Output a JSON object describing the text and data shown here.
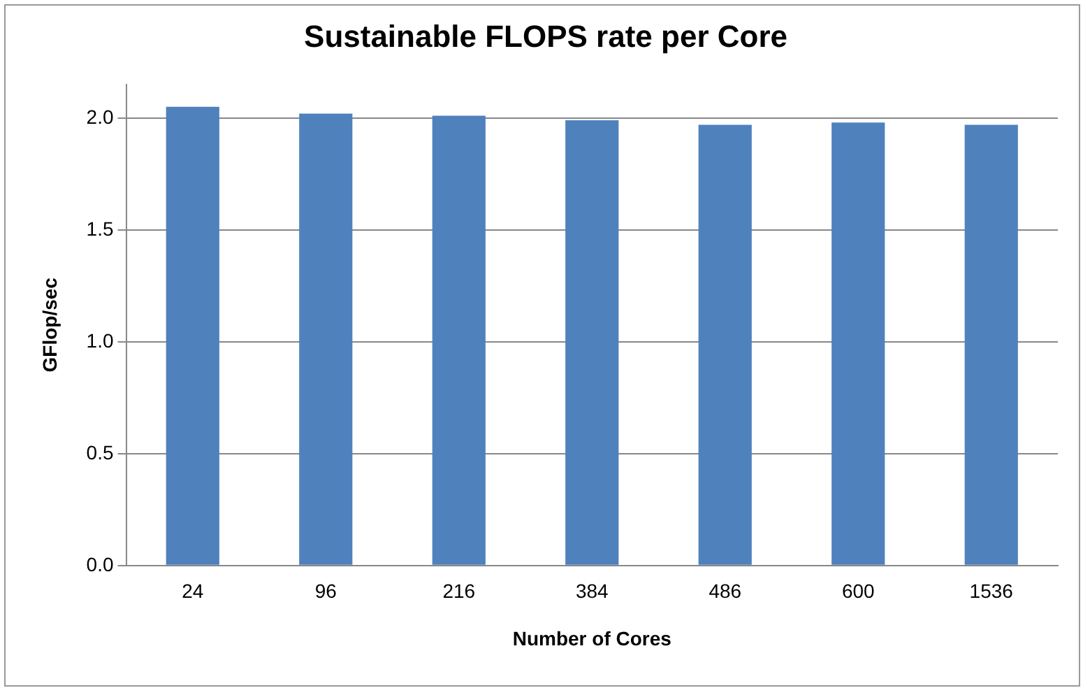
{
  "chart_data": {
    "type": "bar",
    "title": "Sustainable FLOPS rate per Core",
    "xlabel": "Number of Cores",
    "ylabel": "GFlop/sec",
    "categories": [
      "24",
      "96",
      "216",
      "384",
      "486",
      "600",
      "1536"
    ],
    "values": [
      2.05,
      2.02,
      2.01,
      1.99,
      1.97,
      1.98,
      1.97
    ],
    "color": "#4f81bd",
    "ylim": [
      0,
      2.15
    ],
    "yticks": [
      {
        "value": 0,
        "label": "0.0"
      },
      {
        "value": 0.5,
        "label": "0.5"
      },
      {
        "value": 1,
        "label": "1.0"
      },
      {
        "value": 1.5,
        "label": "1.5"
      },
      {
        "value": 2,
        "label": "2.0"
      }
    ],
    "grid": "y",
    "legend": false
  }
}
